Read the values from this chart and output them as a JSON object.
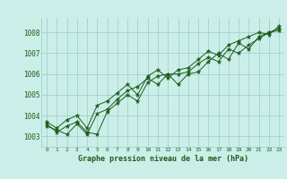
{
  "title": "Graphe pression niveau de la mer (hPa)",
  "background_color": "#cceee8",
  "grid_color": "#99cccc",
  "line_color": "#1a5c1a",
  "marker_color": "#1a5c1a",
  "xlim": [
    -0.5,
    23.5
  ],
  "ylim": [
    1002.5,
    1008.7
  ],
  "yticks": [
    1003,
    1004,
    1005,
    1006,
    1007,
    1008
  ],
  "xticks": [
    0,
    1,
    2,
    3,
    4,
    5,
    6,
    7,
    8,
    9,
    10,
    11,
    12,
    13,
    14,
    15,
    16,
    17,
    18,
    19,
    20,
    21,
    22,
    23
  ],
  "series": [
    [
      1003.6,
      1003.2,
      1003.5,
      1003.7,
      1003.2,
      1003.1,
      1004.2,
      1004.6,
      1005.0,
      1004.7,
      1005.6,
      1005.9,
      1006.0,
      1005.5,
      1006.0,
      1006.1,
      1006.6,
      1007.0,
      1006.7,
      1007.5,
      1007.2,
      1007.8,
      1008.0,
      1008.1
    ],
    [
      1003.5,
      1003.3,
      1003.1,
      1003.6,
      1003.1,
      1004.1,
      1004.3,
      1004.8,
      1005.2,
      1005.4,
      1005.8,
      1005.5,
      1006.0,
      1006.0,
      1006.1,
      1006.5,
      1006.8,
      1006.6,
      1007.2,
      1007.0,
      1007.4,
      1007.7,
      1008.0,
      1008.2
    ],
    [
      1003.7,
      1003.4,
      1003.8,
      1004.0,
      1003.4,
      1004.5,
      1004.7,
      1005.1,
      1005.5,
      1005.0,
      1005.9,
      1006.2,
      1005.8,
      1006.2,
      1006.3,
      1006.7,
      1007.1,
      1006.9,
      1007.4,
      1007.6,
      1007.8,
      1008.0,
      1007.9,
      1008.3
    ]
  ]
}
